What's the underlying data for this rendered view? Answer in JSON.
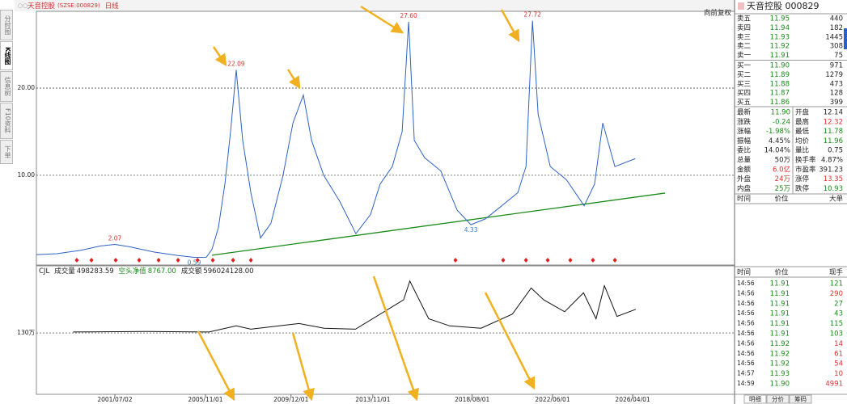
{
  "header": {
    "title": "天音控股",
    "code": "(SZSE:000829)",
    "period": "日线",
    "adjust": "向前复权"
  },
  "side_tabs": [
    "分时图",
    "K线图",
    "信息树",
    "F10资料",
    "下单"
  ],
  "chart_data": [
    {
      "type": "line",
      "x": [
        1997.75,
        1998.72,
        1999.88,
        2000.84,
        2001.5,
        2002.2,
        2003.36,
        2004.52,
        2005.29,
        2005.87,
        2006.14,
        2006.45,
        2006.76,
        2007.03,
        2007.3,
        2007.61,
        2008.0,
        2008.46,
        2008.96,
        2009.54,
        2010.01,
        2010.51,
        2010.9,
        2011.48,
        2012.25,
        2013.02,
        2013.72,
        2014.18,
        2014.76,
        2015.23,
        2015.54,
        2015.81,
        2016.31,
        2017.08,
        2017.86,
        2018.52,
        2019.21,
        2019.99,
        2020.76,
        2021.15,
        2021.46,
        2021.73,
        2022.31,
        2023.08,
        2023.93,
        2024.43,
        2024.82,
        2025.4,
        2026.37
      ],
      "values": [
        0.9,
        1.0,
        1.4,
        1.9,
        2.07,
        1.8,
        1.2,
        0.8,
        0.59,
        0.6,
        1.5,
        4,
        9,
        15,
        22.09,
        14,
        8,
        2.8,
        4.5,
        10,
        16,
        19.2,
        14,
        10,
        7,
        3.3,
        5.5,
        9,
        11,
        15,
        27.6,
        14,
        12,
        10.5,
        6,
        4.33,
        5,
        6.5,
        8,
        11,
        27.72,
        17,
        11,
        9.5,
        6.5,
        9,
        16,
        11,
        11.9
      ],
      "color": "#2f62c4",
      "xlim": [
        1997.75,
        2031.12
      ],
      "ylim": [
        -0.2,
        28.06
      ],
      "yticks": [
        {
          "value": 10,
          "label": "10.00"
        },
        {
          "value": 20,
          "label": "20.00"
        }
      ],
      "grid": true,
      "annotations": [
        {
          "x": 2001.5,
          "value": 2.07,
          "label": "2.07",
          "position": "above",
          "color": "#e03030"
        },
        {
          "x": 2007.3,
          "value": 22.09,
          "label": "22.09",
          "position": "above",
          "color": "#e03030"
        },
        {
          "x": 2015.54,
          "value": 27.6,
          "label": "27.60",
          "position": "above",
          "color": "#e03030"
        },
        {
          "x": 2021.46,
          "value": 27.72,
          "label": "27.72",
          "position": "above",
          "color": "#e03030"
        },
        {
          "x": 2018.52,
          "value": 4.33,
          "label": "4.33",
          "position": "below",
          "color": "#3a7fc0"
        },
        {
          "x": 2005.29,
          "value": 0.59,
          "label": "0.59",
          "position": "below",
          "color": "#3a7fc0"
        }
      ],
      "trend": {
        "x": [
          2006.14,
          2027.8
        ],
        "values": [
          0.83,
          7.96
        ],
        "color": "#1a8a1a"
      },
      "signals": {
        "x": [
          1999.68,
          2000.38,
          2001.54,
          2002.66,
          2003.59,
          2004.52,
          2005.45,
          2006.18,
          2007.15,
          2008.0,
          2017.78,
          2020.06,
          2021.15,
          2022.19,
          2023.27,
          2024.35,
          2025.4
        ],
        "color": "#e02020"
      }
    },
    {
      "type": "line",
      "title": "CJL",
      "indicators": [
        {
          "name": "成交量",
          "value": "498283.59",
          "color": "#222222"
        },
        {
          "name": "空头净值",
          "value": "8767.00",
          "color": "#1a8a1a"
        },
        {
          "name": "成交额",
          "value": "596024128.00",
          "color": "#222222"
        }
      ],
      "x": [
        1999.5,
        2003,
        2006,
        2007.3,
        2008,
        2010.3,
        2011.5,
        2013,
        2015.3,
        2015.6,
        2016.5,
        2017.5,
        2019,
        2020.5,
        2021.4,
        2022,
        2023,
        2023.9,
        2024.5,
        2024.9,
        2025.5,
        2026.4
      ],
      "values": [
        132,
        133,
        132,
        145,
        138,
        150,
        140,
        138,
        200,
        240,
        160,
        145,
        140,
        170,
        225,
        200,
        175,
        215,
        160,
        230,
        165,
        180
      ],
      "color": "#111111",
      "xlim": [
        1997.75,
        2031.12
      ],
      "ylim": [
        0,
        267
      ],
      "yticks": [
        {
          "value": 130,
          "label": "130万"
        }
      ],
      "xticks": [
        {
          "value": 2001.5,
          "label": "2001/07/02"
        },
        {
          "value": 2005.83,
          "label": "2005/11/01"
        },
        {
          "value": 2009.92,
          "label": "2009/12/01"
        },
        {
          "value": 2013.83,
          "label": "2013/11/01"
        },
        {
          "value": 2018.58,
          "label": "2018/08/01"
        },
        {
          "value": 2022.42,
          "label": "2022/06/01"
        },
        {
          "value": 2026.25,
          "label": "2026/04/01"
        }
      ],
      "grid": true
    }
  ],
  "stock_panel": {
    "title": "天音控股  000829",
    "order_book": [
      {
        "label": "卖五",
        "price": "11.95",
        "volume": "440",
        "color": "#1a8a1a"
      },
      {
        "label": "卖四",
        "price": "11.94",
        "volume": "182",
        "color": "#1a8a1a"
      },
      {
        "label": "卖三",
        "price": "11.93",
        "volume": "1445",
        "color": "#1a8a1a"
      },
      {
        "label": "卖二",
        "price": "11.92",
        "volume": "308",
        "color": "#1a8a1a"
      },
      {
        "label": "卖一",
        "price": "11.91",
        "volume": "75",
        "color": "#1a8a1a"
      },
      {
        "label": "买一",
        "price": "11.90",
        "volume": "971",
        "color": "#1a8a1a"
      },
      {
        "label": "买二",
        "price": "11.89",
        "volume": "1279",
        "color": "#1a8a1a"
      },
      {
        "label": "买三",
        "price": "11.88",
        "volume": "473",
        "color": "#1a8a1a"
      },
      {
        "label": "买四",
        "price": "11.87",
        "volume": "128",
        "color": "#1a8a1a"
      },
      {
        "label": "买五",
        "price": "11.86",
        "volume": "399",
        "color": "#1a8a1a"
      }
    ],
    "quote": [
      [
        {
          "label": "最新",
          "value": "11.90",
          "color": "#1a8a1a"
        },
        {
          "label": "开盘",
          "value": "12.14",
          "color": "#222222"
        }
      ],
      [
        {
          "label": "涨跌",
          "value": "-0.24",
          "color": "#1a8a1a"
        },
        {
          "label": "最高",
          "value": "12.32",
          "color": "#e03030"
        }
      ],
      [
        {
          "label": "涨幅",
          "value": "-1.98%",
          "color": "#1a8a1a"
        },
        {
          "label": "最低",
          "value": "11.78",
          "color": "#1a8a1a"
        }
      ],
      [
        {
          "label": "振幅",
          "value": "4.45%",
          "color": "#222222"
        },
        {
          "label": "均价",
          "value": "11.96",
          "color": "#1a8a1a"
        }
      ],
      [
        {
          "label": "委比",
          "value": "14.04%",
          "color": "#222222"
        },
        {
          "label": "量比",
          "value": "0.75",
          "color": "#222222"
        }
      ],
      [
        {
          "label": "总量",
          "value": "50万",
          "color": "#222222"
        },
        {
          "label": "换手率",
          "value": "4.87%",
          "color": "#222222"
        }
      ],
      [
        {
          "label": "金额",
          "value": "6.0亿",
          "color": "#e03030"
        },
        {
          "label": "市盈率",
          "value": "391.23",
          "color": "#222222"
        }
      ],
      [
        {
          "label": "外盘",
          "value": "24万",
          "color": "#e03030"
        },
        {
          "label": "涨停",
          "value": "13.35",
          "color": "#e03030"
        }
      ],
      [
        {
          "label": "内盘",
          "value": "25万",
          "color": "#1a8a1a"
        },
        {
          "label": "跌停",
          "value": "10.93",
          "color": "#1a8a1a"
        }
      ]
    ],
    "detail_header": [
      "时间",
      "价位",
      "大单"
    ],
    "trades_header": [
      "时间",
      "价位",
      "现手"
    ],
    "trades": [
      {
        "time": "14:56",
        "price": "11.91",
        "volume": "121",
        "price_color": "#1a8a1a",
        "volume_color": "#1a8a1a"
      },
      {
        "time": "14:56",
        "price": "11.91",
        "volume": "290",
        "price_color": "#1a8a1a",
        "volume_color": "#e03030"
      },
      {
        "time": "14:56",
        "price": "11.91",
        "volume": "27",
        "price_color": "#1a8a1a",
        "volume_color": "#1a8a1a"
      },
      {
        "time": "14:56",
        "price": "11.91",
        "volume": "43",
        "price_color": "#1a8a1a",
        "volume_color": "#1a8a1a"
      },
      {
        "time": "14:56",
        "price": "11.91",
        "volume": "115",
        "price_color": "#1a8a1a",
        "volume_color": "#1a8a1a"
      },
      {
        "time": "14:56",
        "price": "11.91",
        "volume": "103",
        "price_color": "#1a8a1a",
        "volume_color": "#1a8a1a"
      },
      {
        "time": "14:56",
        "price": "11.92",
        "volume": "14",
        "price_color": "#1a8a1a",
        "volume_color": "#e03030"
      },
      {
        "time": "14:56",
        "price": "11.92",
        "volume": "61",
        "price_color": "#1a8a1a",
        "volume_color": "#e03030"
      },
      {
        "time": "14:56",
        "price": "11.92",
        "volume": "54",
        "price_color": "#1a8a1a",
        "volume_color": "#e03030"
      },
      {
        "time": "14:57",
        "price": "11.93",
        "volume": "10",
        "price_color": "#1a8a1a",
        "volume_color": "#e03030"
      },
      {
        "time": "14:59",
        "price": "11.90",
        "volume": "4991",
        "price_color": "#1a8a1a",
        "volume_color": "#e03030"
      }
    ],
    "tabs": [
      "明细",
      "分价",
      "筹码"
    ]
  }
}
